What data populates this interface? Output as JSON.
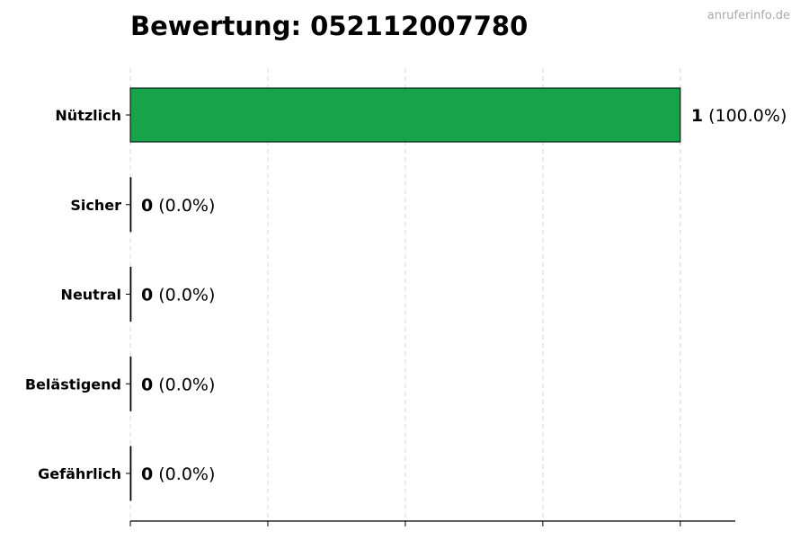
{
  "title": "Bewertung: 052112007780",
  "watermark": "anruferinfo.de",
  "chart_data": {
    "type": "bar",
    "orientation": "horizontal",
    "title": "Bewertung: 052112007780",
    "categories": [
      "Nützlich",
      "Sicher",
      "Neutral",
      "Belästigend",
      "Gefährlich"
    ],
    "values": [
      1,
      0,
      0,
      0,
      0
    ],
    "percent_labels": [
      "(100.0%)",
      "(0.0%)",
      "(0.0%)",
      "(0.0%)",
      "(0.0%)"
    ],
    "colors": [
      "#16a34a",
      "#16a34a",
      "#16a34a",
      "#16a34a",
      "#16a34a"
    ],
    "xlim": [
      0,
      1.1
    ],
    "xticks": [
      0,
      0.25,
      0.5,
      0.75,
      1.0
    ],
    "xtick_labels_shown": false,
    "grid": "x, dashed",
    "xlabel": "",
    "ylabel": ""
  }
}
